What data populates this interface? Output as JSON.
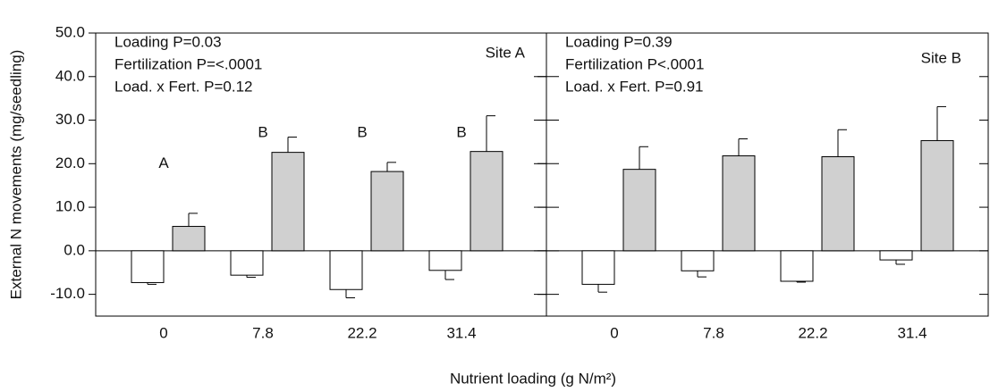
{
  "chart_data": [
    {
      "type": "bar",
      "title": "Site A",
      "annotations": [
        "Loading P=0.03",
        "Fertilization P=<.0001",
        "Load. x Fert.  P=0.12"
      ],
      "ylabel": "External N movements (mg/seedling)",
      "xlabel": "Nutrient loading (g N/m²)",
      "categories": [
        "0",
        "7.8",
        "22.2",
        "31.4"
      ],
      "letters": [
        "A",
        "B",
        "B",
        "B"
      ],
      "series": [
        {
          "color": "#ffffff",
          "values": [
            -7.3,
            -5.6,
            -8.9,
            -4.5
          ],
          "errors": [
            0.4,
            0.5,
            1.9,
            2.1
          ]
        },
        {
          "color": "#d0d0d0",
          "values": [
            5.6,
            22.6,
            18.2,
            22.8
          ],
          "errors": [
            3.0,
            3.5,
            2.1,
            8.2
          ]
        }
      ],
      "ylim": [
        -15,
        50
      ],
      "yticks": [
        {
          "value": -10,
          "label": "-10.0"
        },
        {
          "value": 0,
          "label": "0.0"
        },
        {
          "value": 10,
          "label": "10.0"
        },
        {
          "value": 20,
          "label": "20.0"
        },
        {
          "value": 30,
          "label": "30.0"
        },
        {
          "value": 40,
          "label": "40.0"
        },
        {
          "value": 50,
          "label": "50.0"
        }
      ]
    },
    {
      "type": "bar",
      "title": "Site B",
      "annotations": [
        "Loading P=0.39",
        "Fertilization P<.0001",
        "Load. x Fert.  P=0.91"
      ],
      "categories": [
        "0",
        "7.8",
        "22.2",
        "31.4"
      ],
      "series": [
        {
          "color": "#ffffff",
          "values": [
            -7.7,
            -4.6,
            -7.0,
            -2.1
          ],
          "errors": [
            1.8,
            1.4,
            0.2,
            1.0
          ]
        },
        {
          "color": "#d0d0d0",
          "values": [
            18.7,
            21.8,
            21.6,
            25.3
          ],
          "errors": [
            5.2,
            3.9,
            6.2,
            7.8
          ]
        }
      ],
      "ylim": [
        -15,
        50
      ],
      "yticks": [
        {
          "value": -10,
          "label": "-10.0"
        },
        {
          "value": 0,
          "label": "0.0"
        },
        {
          "value": 10,
          "label": "10.0"
        },
        {
          "value": 20,
          "label": "20.0"
        },
        {
          "value": 30,
          "label": "30.0"
        },
        {
          "value": 40,
          "label": "40.0"
        },
        {
          "value": 50,
          "label": "50.0"
        }
      ]
    }
  ]
}
